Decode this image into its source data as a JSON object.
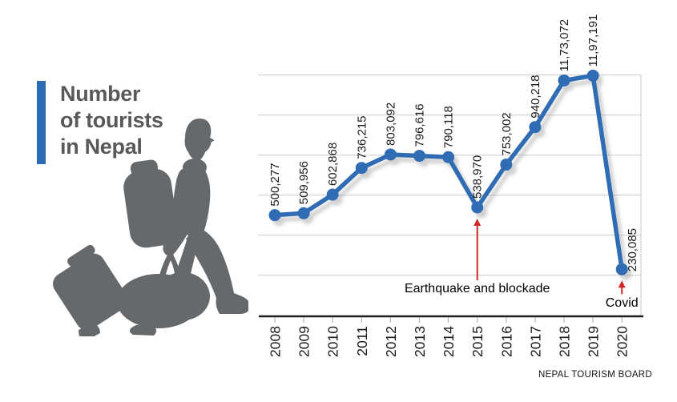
{
  "title": {
    "text": "Number\nof tourists\nin Nepal"
  },
  "source": {
    "label": "NEPAL TOURISM BOARD"
  },
  "colors": {
    "accent_blue": "#2d6cb5",
    "line_blue": "#2f6cb4",
    "annotation_red": "#d32627",
    "title_gray": "#58595b",
    "silhouette_gray": "#66696c",
    "grid_gray": "#c9c9c9",
    "axis_black": "#1f1f1f",
    "label_black": "#1a1a1a",
    "source_black": "#141414",
    "shadow_gray": "#9a9a9a"
  },
  "chart_data": {
    "type": "line",
    "title": "Number of tourists in Nepal",
    "x": [
      2008,
      2009,
      2010,
      2011,
      2012,
      2013,
      2014,
      2015,
      2016,
      2017,
      2018,
      2019,
      2020
    ],
    "values": [
      500277,
      509956,
      602868,
      736215,
      803092,
      796616,
      790118,
      538970,
      753002,
      940218,
      1173072,
      1197191,
      230085
    ],
    "value_labels": [
      "500,277",
      "509,956",
      "602,868",
      "736,215",
      "803,092",
      "796,616",
      "790,118",
      "538,970",
      "753,002",
      "940,218",
      "11,73,072",
      "11,97,191",
      "230,085"
    ],
    "xlabel": "",
    "ylabel": "",
    "ylim": [
      0,
      1250000
    ],
    "grid": {
      "visible": true,
      "start": 200000,
      "step": 200000,
      "count": 6
    },
    "legend": "none",
    "annotations": [
      {
        "x": 2015,
        "text": "Earthquake and blockade"
      },
      {
        "x": 2020,
        "text": "Covid"
      }
    ],
    "source": "NEPAL TOURISM BOARD"
  }
}
